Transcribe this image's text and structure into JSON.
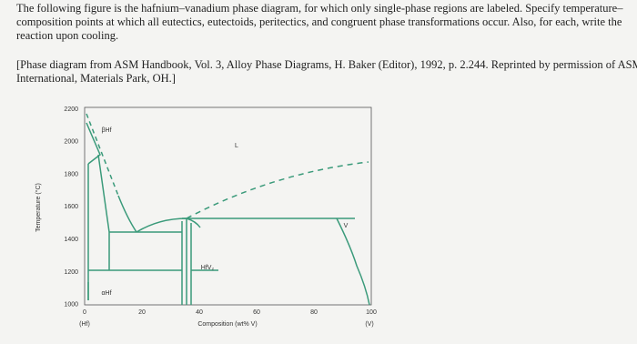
{
  "problem": {
    "lines": [
      "The following figure is the hafnium–vanadium phase diagram, for which only single-phase regions are labeled. Specify temperature–",
      "composition points at which all eutectics, eutectoids, peritectics, and congruent phase transformations occur. Also, for each, write the",
      "reaction upon cooling."
    ]
  },
  "citation": {
    "lines": [
      "[Phase diagram from ASM Handbook, Vol. 3, Alloy Phase Diagrams, H. Baker (Editor), 1992, p. 2.244. Reprinted by permission of ASM",
      "International, Materials Park, OH.]"
    ]
  },
  "figure": {
    "y_axis_label": "Temperature (°C)",
    "y_ticks": [
      "2200",
      "2000",
      "1800",
      "1600",
      "1400",
      "1200",
      "1000"
    ],
    "x_ticks": [
      "0",
      "20",
      "40",
      "60",
      "80",
      "100"
    ],
    "x_axis_label": "Composition (wt% V)",
    "x_end_labels": [
      "(Hf)",
      "(V)"
    ],
    "regions": [
      "βHf",
      "L",
      "V",
      "HfV₂",
      "αHf"
    ]
  }
}
